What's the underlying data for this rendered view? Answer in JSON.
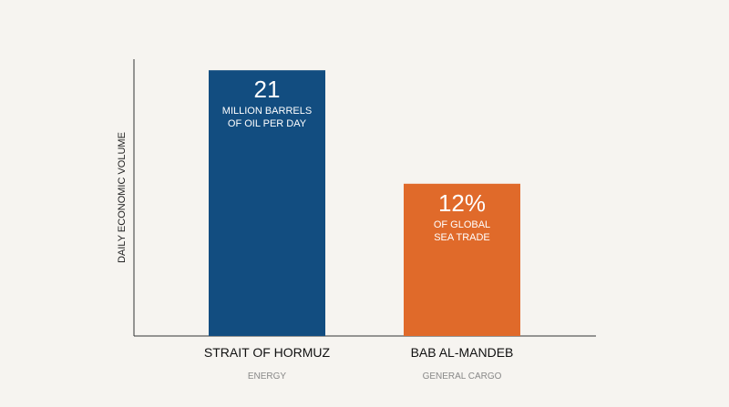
{
  "chart_data": {
    "type": "bar",
    "ylabel": "DAILY ECONOMIC VOLUME",
    "xlabel": "",
    "grid": false,
    "ylim": [
      0,
      1.0
    ],
    "categories": [
      "STRAIT OF HORMUZ",
      "BAB AL-MANDEB"
    ],
    "subcategories": [
      "ENERGY",
      "GENERAL CARGO"
    ],
    "values": [
      0.96,
      0.55
    ],
    "colors": [
      "#124d80",
      "#e06a2a"
    ],
    "bar_labels": [
      {
        "value_text": "21",
        "line1": "MILLION BARRELS",
        "line2": "OF OIL PER DAY"
      },
      {
        "value_text": "12%",
        "line1": "OF GLOBAL",
        "line2": "SEA TRADE"
      }
    ]
  }
}
